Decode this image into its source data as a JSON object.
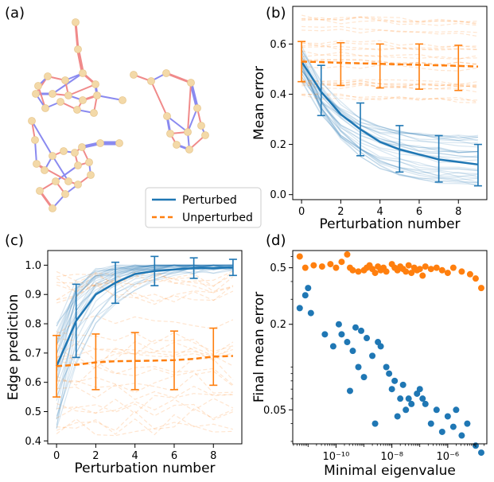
{
  "panel_labels": [
    "(a)",
    "(b)",
    "(c)",
    "(d)"
  ],
  "legend": {
    "perturbed": "Perturbed",
    "unperturbed": "Unperturbed"
  },
  "colors": {
    "perturbed": "#1f77b4",
    "unperturbed": "#ff7f0e",
    "edge_pos": "#f08a8a",
    "edge_neg": "#8a8af0",
    "node": "#f3d9a8"
  },
  "chart_data": [
    {
      "id": "b",
      "type": "line",
      "title": "",
      "xlabel": "Perturbation number",
      "ylabel": "Mean error",
      "xlim": [
        -0.45,
        9.45
      ],
      "ylim": [
        -0.02,
        0.75
      ],
      "xticks": [
        0,
        2,
        4,
        6,
        8
      ],
      "xtick_labels": [
        "0",
        "2",
        "4",
        "6",
        "8"
      ],
      "yticks": [
        0.0,
        0.2,
        0.4,
        0.6
      ],
      "ytick_labels": [
        "0.0",
        "0.2",
        "0.4",
        "0.6"
      ],
      "series": [
        {
          "name": "Perturbed",
          "style": "solid",
          "x": [
            0,
            1,
            2,
            3,
            4,
            5,
            6,
            7,
            8,
            9
          ],
          "values": [
            0.53,
            0.41,
            0.32,
            0.26,
            0.21,
            0.18,
            0.16,
            0.14,
            0.13,
            0.12
          ],
          "error_x": [
            1,
            3,
            5,
            7,
            9
          ],
          "error_center": [
            0.415,
            0.26,
            0.18,
            0.14,
            0.12
          ],
          "error_low": [
            0.315,
            0.155,
            0.09,
            0.05,
            0.035
          ],
          "error_high": [
            0.515,
            0.365,
            0.275,
            0.235,
            0.2
          ]
        },
        {
          "name": "Unperturbed",
          "style": "dashed",
          "x": [
            0,
            1,
            2,
            3,
            4,
            5,
            6,
            7,
            8,
            9
          ],
          "values": [
            0.53,
            0.528,
            0.525,
            0.523,
            0.521,
            0.519,
            0.517,
            0.515,
            0.513,
            0.51
          ],
          "error_x": [
            0,
            2,
            4,
            6,
            8
          ],
          "error_center": [
            0.53,
            0.525,
            0.521,
            0.517,
            0.513
          ],
          "error_low": [
            0.45,
            0.435,
            0.425,
            0.42,
            0.415
          ],
          "error_high": [
            0.61,
            0.605,
            0.6,
            0.6,
            0.595
          ]
        }
      ]
    },
    {
      "id": "c",
      "type": "line",
      "title": "",
      "xlabel": "Perturbation number",
      "ylabel": "Edge prediction",
      "xlim": [
        -0.45,
        9.45
      ],
      "ylim": [
        0.39,
        1.05
      ],
      "xticks": [
        0,
        2,
        4,
        6,
        8
      ],
      "xtick_labels": [
        "0",
        "2",
        "4",
        "6",
        "8"
      ],
      "yticks": [
        0.4,
        0.5,
        0.6,
        0.7,
        0.8,
        0.9,
        1.0
      ],
      "ytick_labels": [
        "0.4",
        "0.5",
        "0.6",
        "0.7",
        "0.8",
        "0.9",
        "1.0"
      ],
      "series": [
        {
          "name": "Perturbed",
          "style": "solid",
          "x": [
            0,
            1,
            2,
            3,
            4,
            5,
            6,
            7,
            8,
            9
          ],
          "values": [
            0.655,
            0.81,
            0.9,
            0.94,
            0.97,
            0.98,
            0.985,
            0.99,
            0.99,
            0.993
          ],
          "error_x": [
            1,
            3,
            5,
            7,
            9
          ],
          "error_center": [
            0.81,
            0.94,
            0.98,
            0.99,
            0.993
          ],
          "error_low": [
            0.685,
            0.87,
            0.93,
            0.955,
            0.965
          ],
          "error_high": [
            0.935,
            1.01,
            1.03,
            1.025,
            1.02
          ]
        },
        {
          "name": "Unperturbed",
          "style": "dashed",
          "x": [
            0,
            1,
            2,
            3,
            4,
            5,
            6,
            7,
            8,
            9
          ],
          "values": [
            0.655,
            0.66,
            0.668,
            0.672,
            0.673,
            0.674,
            0.676,
            0.68,
            0.688,
            0.69
          ],
          "error_x": [
            0,
            2,
            4,
            6,
            8
          ],
          "error_center": [
            0.655,
            0.668,
            0.673,
            0.676,
            0.688
          ],
          "error_low": [
            0.55,
            0.575,
            0.575,
            0.575,
            0.59
          ],
          "error_high": [
            0.76,
            0.765,
            0.77,
            0.775,
            0.785
          ]
        }
      ]
    },
    {
      "id": "d",
      "type": "scatter",
      "title": "",
      "xlabel": "Minimal eigenvalue",
      "ylabel": "Final mean error",
      "xscale": "log",
      "yscale": "log",
      "xlim_log10": [
        -11.55,
        -4.6
      ],
      "ylim_log10": [
        -1.54,
        -0.18
      ],
      "xticks_log10": [
        -10,
        -8,
        -6
      ],
      "xtick_labels": [
        "10⁻¹⁰",
        "10⁻⁸",
        "10⁻⁶"
      ],
      "yticks": [
        0.05,
        0.2,
        0.5
      ],
      "ytick_labels": [
        "0.05",
        "0.2",
        "0.5"
      ],
      "series": [
        {
          "name": "Unperturbed",
          "points": [
            [
              -11.3,
              0.6
            ],
            [
              -11.1,
              0.5
            ],
            [
              -10.8,
              0.52
            ],
            [
              -10.5,
              0.51
            ],
            [
              -10.2,
              0.53
            ],
            [
              -10.0,
              0.5
            ],
            [
              -9.8,
              0.55
            ],
            [
              -9.6,
              0.62
            ],
            [
              -9.5,
              0.5
            ],
            [
              -9.4,
              0.48
            ],
            [
              -9.2,
              0.47
            ],
            [
              -9.0,
              0.48
            ],
            [
              -8.9,
              0.5
            ],
            [
              -8.8,
              0.52
            ],
            [
              -8.7,
              0.49
            ],
            [
              -8.6,
              0.46
            ],
            [
              -8.5,
              0.51
            ],
            [
              -8.4,
              0.48
            ],
            [
              -8.3,
              0.5
            ],
            [
              -8.2,
              0.47
            ],
            [
              -8.0,
              0.53
            ],
            [
              -7.9,
              0.5
            ],
            [
              -7.8,
              0.48
            ],
            [
              -7.7,
              0.51
            ],
            [
              -7.6,
              0.49
            ],
            [
              -7.5,
              0.47
            ],
            [
              -7.4,
              0.52
            ],
            [
              -7.3,
              0.46
            ],
            [
              -7.2,
              0.5
            ],
            [
              -7.1,
              0.48
            ],
            [
              -7.0,
              0.49
            ],
            [
              -6.8,
              0.51
            ],
            [
              -6.6,
              0.49
            ],
            [
              -6.4,
              0.5
            ],
            [
              -6.2,
              0.48
            ],
            [
              -6.0,
              0.46
            ],
            [
              -5.8,
              0.5
            ],
            [
              -5.5,
              0.47
            ],
            [
              -5.2,
              0.45
            ],
            [
              -4.8,
              0.36
            ],
            [
              -5.0,
              0.42
            ],
            [
              -6.9,
              0.44
            ]
          ]
        },
        {
          "name": "Perturbed",
          "points": [
            [
              -11.3,
              0.26
            ],
            [
              -11.1,
              0.32
            ],
            [
              -11.0,
              0.36
            ],
            [
              -10.9,
              0.24
            ],
            [
              -10.4,
              0.17
            ],
            [
              -10.1,
              0.14
            ],
            [
              -9.9,
              0.2
            ],
            [
              -9.8,
              0.17
            ],
            [
              -9.6,
              0.15
            ],
            [
              -9.4,
              0.13
            ],
            [
              -9.3,
              0.19
            ],
            [
              -9.2,
              0.1
            ],
            [
              -9.1,
              0.18
            ],
            [
              -8.9,
              0.16
            ],
            [
              -8.7,
              0.12
            ],
            [
              -8.5,
              0.15
            ],
            [
              -8.4,
              0.14
            ],
            [
              -8.2,
              0.1
            ],
            [
              -8.1,
              0.09
            ],
            [
              -8.0,
              0.07
            ],
            [
              -7.9,
              0.08
            ],
            [
              -7.7,
              0.06
            ],
            [
              -7.6,
              0.075
            ],
            [
              -7.5,
              0.05
            ],
            [
              -7.4,
              0.06
            ],
            [
              -7.3,
              0.055
            ],
            [
              -7.1,
              0.065
            ],
            [
              -7.0,
              0.07
            ],
            [
              -6.9,
              0.06
            ],
            [
              -6.8,
              0.055
            ],
            [
              -6.6,
              0.04
            ],
            [
              -6.4,
              0.05
            ],
            [
              -6.2,
              0.035
            ],
            [
              -6.0,
              0.045
            ],
            [
              -5.8,
              0.038
            ],
            [
              -5.7,
              0.05
            ],
            [
              -5.5,
              0.033
            ],
            [
              -5.3,
              0.04
            ],
            [
              -5.0,
              0.028
            ],
            [
              -4.8,
              0.025
            ],
            [
              -9.5,
              0.068
            ],
            [
              -8.6,
              0.04
            ],
            [
              -7.8,
              0.045
            ],
            [
              -9.0,
              0.085
            ]
          ]
        }
      ]
    }
  ]
}
